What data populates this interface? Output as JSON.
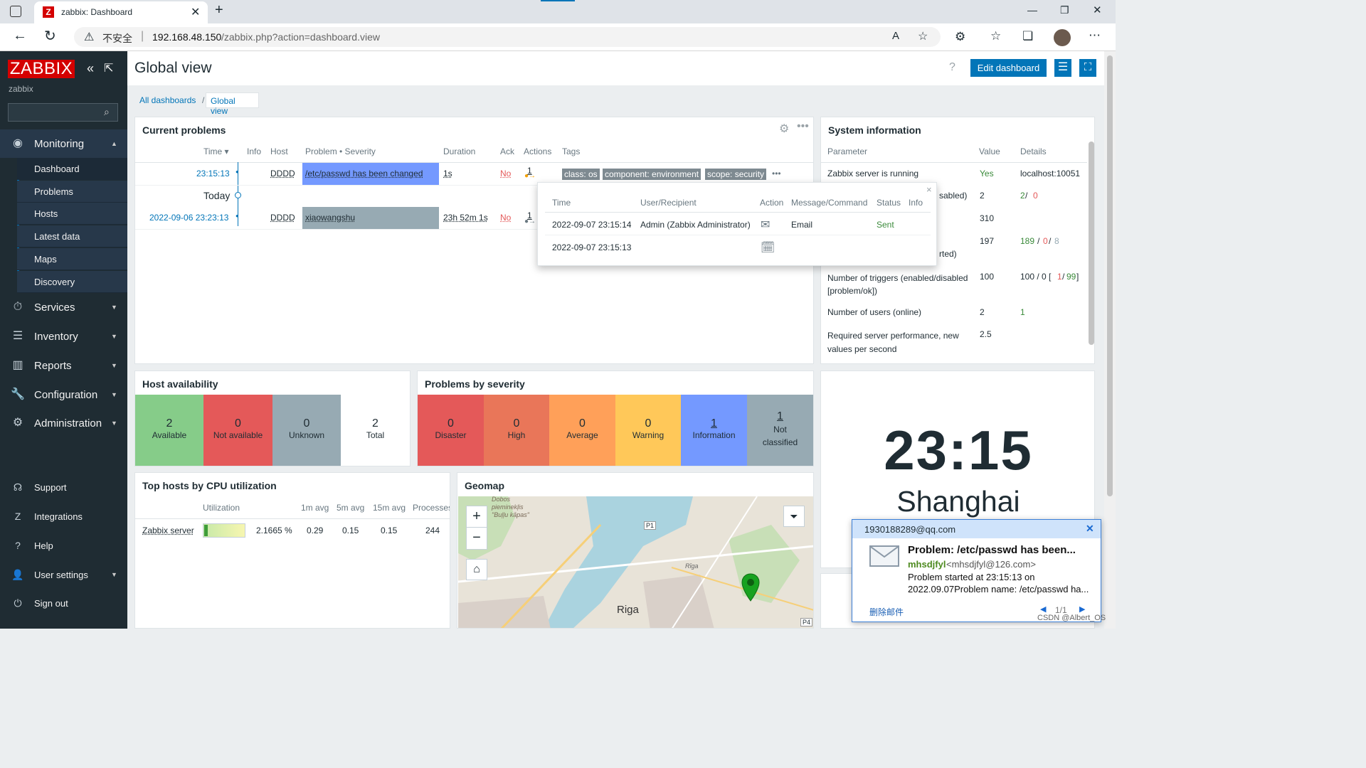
{
  "browser": {
    "tab_title": "zabbix: Dashboard",
    "security_label": "不安全",
    "url_host": "192.168.48.150",
    "url_path": "/zabbix.php?action=dashboard.view"
  },
  "sidebar": {
    "logo": "ZABBIX",
    "server_name": "zabbix",
    "search_placeholder": "",
    "monitoring": "Monitoring",
    "monitoring_items": [
      "Dashboard",
      "Problems",
      "Hosts",
      "Latest data",
      "Maps",
      "Discovery"
    ],
    "services": "Services",
    "inventory": "Inventory",
    "reports": "Reports",
    "configuration": "Configuration",
    "administration": "Administration",
    "support": "Support",
    "integrations": "Integrations",
    "help": "Help",
    "user_settings": "User settings",
    "sign_out": "Sign out"
  },
  "header": {
    "title": "Global view",
    "help": "?",
    "edit_button": "Edit dashboard",
    "breadcrumb_all": "All dashboards",
    "breadcrumb_sep": "/",
    "breadcrumb_current": "Global view"
  },
  "current_problems": {
    "title": "Current problems",
    "columns": [
      "Time ▾",
      "Info",
      "Host",
      "Problem • Severity",
      "Duration",
      "Ack",
      "Actions",
      "Tags"
    ],
    "rows": [
      {
        "time": "23:15:13",
        "host": "DDDD",
        "problem": "/etc/passwd has been changed",
        "duration": "1s",
        "ack": "No",
        "actions": "1",
        "tags": [
          "class: os",
          "component: environment",
          "scope: security"
        ],
        "more": "•••"
      },
      {
        "time": "2022-09-06 23:23:13",
        "host": "DDDD",
        "problem": "xiaowangshu",
        "duration": "23h 52m 1s",
        "ack": "No",
        "actions": "1"
      }
    ],
    "today_label": "Today"
  },
  "popup": {
    "close": "×",
    "columns": [
      "Time",
      "User/Recipient",
      "Action",
      "Message/Command",
      "Status",
      "Info"
    ],
    "rows": [
      {
        "time": "2022-09-07 23:15:14",
        "user": "Admin (Zabbix Administrator)",
        "message": "Email",
        "status": "Sent"
      },
      {
        "time": "2022-09-07 23:15:13",
        "user": "",
        "message": "",
        "status": ""
      }
    ]
  },
  "system_info": {
    "title": "System information",
    "columns": [
      "Parameter",
      "Value",
      "Details"
    ],
    "rows": [
      {
        "param": "Zabbix server is running",
        "value": "Yes",
        "details": "localhost:10051"
      },
      {
        "param": "sabled)",
        "value": "2",
        "details_a": "2",
        "details_sep": " / ",
        "details_b": "0"
      },
      {
        "param": "",
        "value": "310"
      },
      {
        "param": "rted)",
        "value": "197",
        "details_a": "189",
        "details_b": "0",
        "details_c": "8"
      },
      {
        "param": "Number of triggers (enabled/disabled [problem/ok])",
        "value": "100",
        "details_a": "100 / 0 [",
        "details_b": "1",
        "details_c": "99",
        "details_d": "]"
      },
      {
        "param": "Number of users (online)",
        "value": "2",
        "details": "1"
      },
      {
        "param": "Required server performance, new values per second",
        "value": "2.5"
      }
    ]
  },
  "host_availability": {
    "title": "Host availability",
    "items": [
      {
        "count": "2",
        "label": "Available",
        "color": "#86cc89"
      },
      {
        "count": "0",
        "label": "Not available",
        "color": "#e45959"
      },
      {
        "count": "0",
        "label": "Unknown",
        "color": "#97aab3"
      },
      {
        "count": "2",
        "label": "Total",
        "color": "#ffffff"
      }
    ]
  },
  "problems_by_severity": {
    "title": "Problems by severity",
    "items": [
      {
        "count": "0",
        "label": "Disaster",
        "color": "#e45959"
      },
      {
        "count": "0",
        "label": "High",
        "color": "#e97659"
      },
      {
        "count": "0",
        "label": "Average",
        "color": "#ffa059"
      },
      {
        "count": "0",
        "label": "Warning",
        "color": "#ffc859"
      },
      {
        "count": "1",
        "label": "Information",
        "color": "#7499ff"
      },
      {
        "count": "1",
        "label": "Not classified",
        "color": "#97aab3"
      }
    ]
  },
  "top_hosts": {
    "title": "Top hosts by CPU utilization",
    "columns": [
      "Utilization",
      "1m avg",
      "5m avg",
      "15m avg",
      "Processes"
    ],
    "row": {
      "host": "Zabbix server",
      "util": "2.1665 %",
      "m1": "0.29",
      "m5": "0.15",
      "m15": "0.15",
      "proc": "244"
    },
    "util_fraction": 0.02
  },
  "geomap": {
    "title": "Geomap",
    "zoom_in": "+",
    "zoom_out": "−",
    "labels": [
      "Riga",
      "P1",
      "P4",
      "Rīga",
      "Dobos pieminekļis \"Buļļu kāpas\""
    ]
  },
  "clock": {
    "time": "23:15",
    "city": "Shanghai"
  },
  "email_notification": {
    "account": "1930188289@qq.com",
    "subject": "Problem: /etc/passwd has been...",
    "sender_name": "mhsdjfyl",
    "sender_email": "<mhsdjfyl@126.com>",
    "body_line1": "Problem started at 23:15:13 on",
    "body_line2": "2022.09.07Problem name: /etc/passwd ha...",
    "delete_label": "删除邮件",
    "pager": "1/1"
  },
  "watermark": "CSDN @Albert_OS",
  "colors": {
    "sidebar": "#1f2c33",
    "accent": "#0275b8",
    "logo_red": "#d40000",
    "info_blue": "#7499ff"
  }
}
